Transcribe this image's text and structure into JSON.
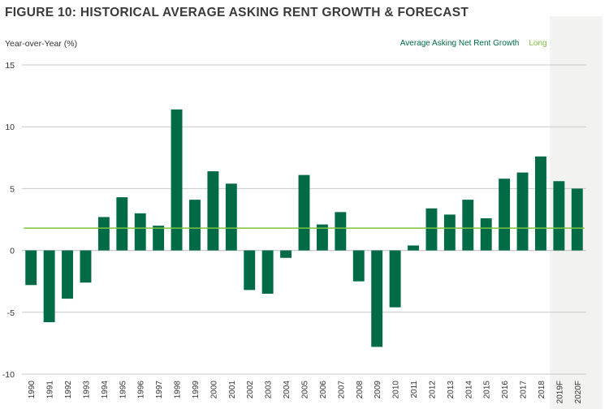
{
  "chart_data": {
    "type": "bar",
    "title": "FIGURE 10: HISTORICAL AVERAGE ASKING RENT GROWTH & FORECAST",
    "ylabel": "Year-over-Year (%)",
    "xlabel": "",
    "ylim": [
      -10,
      15
    ],
    "yticks": [
      15,
      10,
      5,
      0,
      -5,
      -10
    ],
    "grid": true,
    "legend_placement": "top-right",
    "categories": [
      "1990",
      "1991",
      "1992",
      "1993",
      "1994",
      "1995",
      "1996",
      "1997",
      "1998",
      "1999",
      "2000",
      "2001",
      "2002",
      "2003",
      "2004",
      "2005",
      "2006",
      "2007",
      "2008",
      "2009",
      "2010",
      "2011",
      "2012",
      "2013",
      "2014",
      "2015",
      "2016",
      "2017",
      "2018",
      "2019F",
      "2020F"
    ],
    "series": [
      {
        "name": "Average Asking Net Rent Growth",
        "type": "bar",
        "color": "#006b45",
        "values": [
          -2.8,
          -5.8,
          -3.9,
          -2.6,
          2.7,
          4.3,
          3.0,
          2.0,
          11.4,
          4.1,
          6.4,
          5.4,
          -3.2,
          -3.5,
          -0.6,
          6.1,
          2.1,
          3.1,
          -2.5,
          -7.8,
          -4.6,
          0.4,
          3.4,
          2.9,
          4.1,
          2.6,
          5.8,
          6.3,
          7.6,
          5.6,
          5.0
        ]
      },
      {
        "name": "Long Run Average",
        "type": "line",
        "color": "#7ec244",
        "value": 1.8
      }
    ],
    "forecast_categories": [
      "2019F",
      "2020F"
    ]
  },
  "colors": {
    "title": "#3a3a3a",
    "bar": "#006b45",
    "average_line": "#7ec244",
    "grid": "#c8c8c8",
    "forecast_shade": "#f2f2f0"
  }
}
